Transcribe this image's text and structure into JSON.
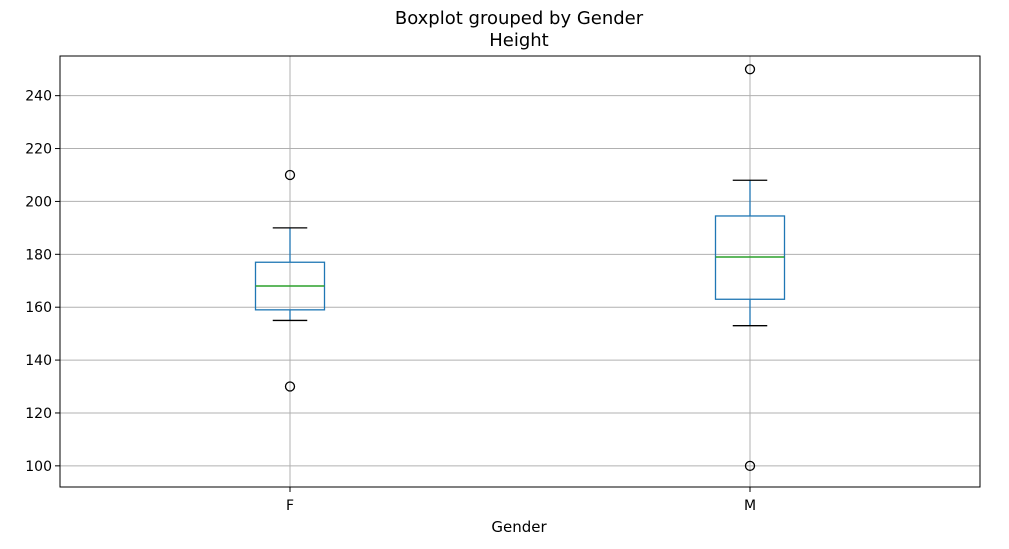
{
  "chart_data": {
    "type": "boxplot",
    "suptitle": "Boxplot grouped by Gender",
    "title": "Height",
    "xlabel": "Gender",
    "ylabel": "",
    "ylim": [
      92,
      255
    ],
    "yticks": [
      100,
      120,
      140,
      160,
      180,
      200,
      220,
      240
    ],
    "grid": true,
    "categories": [
      "F",
      "M"
    ],
    "boxes": [
      {
        "category": "F",
        "whisker_low": 155,
        "q1": 159,
        "median": 168,
        "q3": 177,
        "whisker_high": 190,
        "outliers": [
          130,
          210
        ]
      },
      {
        "category": "M",
        "whisker_low": 153,
        "q1": 163,
        "median": 179,
        "q3": 194.5,
        "whisker_high": 208,
        "outliers": [
          100,
          250
        ]
      }
    ],
    "colors": {
      "box": "#1f77b4",
      "median": "#2ca02c",
      "whisker": "#1f77b4",
      "cap": "#000000",
      "grid": "#b0b0b0"
    }
  }
}
